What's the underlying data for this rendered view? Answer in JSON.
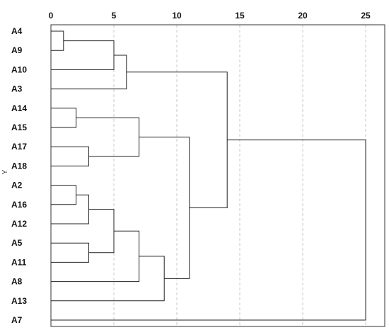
{
  "chart_data": {
    "type": "dendrogram",
    "ylabel": "Y",
    "x_ticks": [
      0,
      5,
      10,
      15,
      20,
      25
    ],
    "xlim": [
      0,
      26
    ],
    "grid": "vertical dashed",
    "leaves": [
      "A4",
      "A9",
      "A10",
      "A3",
      "A14",
      "A15",
      "A17",
      "A18",
      "A2",
      "A16",
      "A12",
      "A5",
      "A11",
      "A8",
      "A13",
      "A7"
    ],
    "merges": [
      {
        "id": "m1",
        "a": "A4",
        "b": "A9",
        "height": 1
      },
      {
        "id": "m2",
        "a": "A14",
        "b": "A15",
        "height": 2
      },
      {
        "id": "m3",
        "a": "A2",
        "b": "A16",
        "height": 2
      },
      {
        "id": "m4",
        "a": "A17",
        "b": "A18",
        "height": 3
      },
      {
        "id": "m5",
        "a": "m3",
        "b": "A12",
        "height": 3
      },
      {
        "id": "m6",
        "a": "A5",
        "b": "A11",
        "height": 3
      },
      {
        "id": "m7",
        "a": "m1",
        "b": "A10",
        "height": 5
      },
      {
        "id": "m8",
        "a": "m5",
        "b": "m6",
        "height": 5
      },
      {
        "id": "m9",
        "a": "m7",
        "b": "A3",
        "height": 6
      },
      {
        "id": "m10",
        "a": "m2",
        "b": "m4",
        "height": 7
      },
      {
        "id": "m11",
        "a": "m8",
        "b": "A8",
        "height": 7
      },
      {
        "id": "m12",
        "a": "m11",
        "b": "A13",
        "height": 9
      },
      {
        "id": "m13",
        "a": "m10",
        "b": "m12",
        "height": 11
      },
      {
        "id": "m14",
        "a": "m9",
        "b": "m13",
        "height": 14
      },
      {
        "id": "m15",
        "a": "m14",
        "b": "A7",
        "height": 25
      }
    ]
  }
}
